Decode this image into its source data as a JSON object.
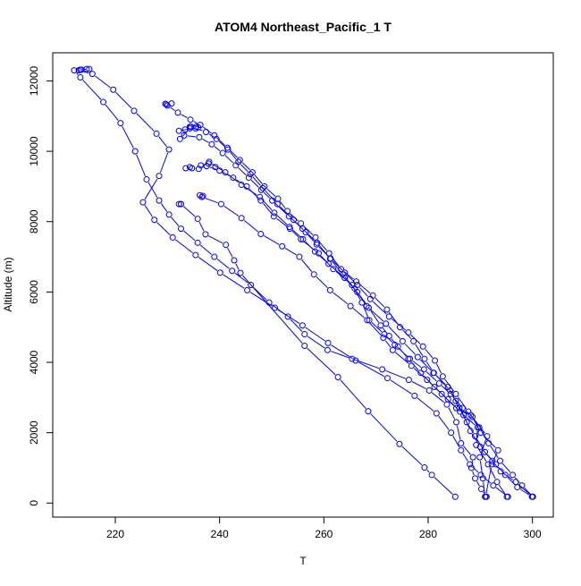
{
  "chart_data": {
    "type": "line",
    "title": "ATOM4 Northeast_Pacific_1 T",
    "xlabel": "T",
    "ylabel": "Altitude (m)",
    "xlim": [
      208,
      304
    ],
    "ylim": [
      -400,
      12800
    ],
    "x_ticks": [
      220,
      240,
      260,
      280,
      300
    ],
    "y_ticks": [
      0,
      2000,
      4000,
      6000,
      8000,
      10000,
      12000
    ],
    "grid": false,
    "legend": "none",
    "marker": "open-circle",
    "colors": {
      "series": "#0000ff",
      "frame": "#000000"
    },
    "series": [
      {
        "values": [
          [
            285.2,
            180
          ],
          [
            280.7,
            800
          ],
          [
            279.3,
            1010
          ],
          [
            274.5,
            1680
          ],
          [
            268.5,
            2610
          ],
          [
            262.7,
            3580
          ],
          [
            256.3,
            4470
          ],
          [
            244.0,
            6540
          ],
          [
            242.8,
            6900
          ],
          [
            241.2,
            7340
          ],
          [
            237.3,
            7640
          ],
          [
            235.8,
            8080
          ],
          [
            232.6,
            8500
          ],
          [
            232.2,
            8500
          ],
          [
            232.6,
            8500
          ]
        ]
      },
      {
        "values": [
          [
            290.9,
            180
          ],
          [
            290.5,
            700
          ],
          [
            289.9,
            1300
          ],
          [
            291.3,
            1900
          ],
          [
            288.2,
            2500
          ],
          [
            285.4,
            2700
          ],
          [
            282.6,
            3100
          ],
          [
            279.8,
            3500
          ],
          [
            276.8,
            3900
          ],
          [
            273.2,
            4350
          ],
          [
            271.4,
            4700
          ],
          [
            268.3,
            5200
          ],
          [
            265.1,
            5600
          ],
          [
            261.2,
            6050
          ],
          [
            258.1,
            6500
          ],
          [
            255.3,
            7000
          ],
          [
            252.0,
            7300
          ],
          [
            247.9,
            7650
          ],
          [
            244.2,
            8100
          ],
          [
            240.3,
            8500
          ],
          [
            236.6,
            8700
          ],
          [
            236.2,
            8750
          ],
          [
            236.8,
            8730
          ]
        ]
      },
      {
        "values": [
          [
            291.0,
            180
          ],
          [
            292.2,
            1100
          ],
          [
            293.4,
            1500
          ],
          [
            290.1,
            2000
          ],
          [
            288.5,
            2450
          ],
          [
            286.6,
            2700
          ],
          [
            284.3,
            3100
          ],
          [
            282.1,
            3400
          ],
          [
            279.2,
            3800
          ],
          [
            276.5,
            4100
          ],
          [
            273.6,
            4500
          ],
          [
            271.6,
            4800
          ],
          [
            268.7,
            5200
          ],
          [
            267.3,
            5700
          ],
          [
            265.4,
            6200
          ],
          [
            261.8,
            6650
          ],
          [
            259.0,
            7100
          ],
          [
            255.6,
            7500
          ],
          [
            253.5,
            7800
          ],
          [
            250.4,
            8150
          ],
          [
            247.9,
            8600
          ],
          [
            245.2,
            9000
          ],
          [
            242.6,
            9250
          ],
          [
            240.0,
            9450
          ],
          [
            237.5,
            9580
          ],
          [
            236.4,
            9600
          ],
          [
            237.9,
            9650
          ],
          [
            239.2,
            9550
          ]
        ]
      },
      {
        "values": [
          [
            295.1,
            180
          ],
          [
            293.2,
            600
          ],
          [
            291.5,
            1100
          ],
          [
            289.2,
            1650
          ],
          [
            289.5,
            2150
          ],
          [
            286.1,
            2600
          ],
          [
            283.8,
            2950
          ],
          [
            281.2,
            3300
          ],
          [
            278.6,
            3700
          ],
          [
            276.2,
            4100
          ],
          [
            274.2,
            4450
          ],
          [
            272.5,
            4750
          ],
          [
            270.9,
            5050
          ],
          [
            268.6,
            5550
          ],
          [
            266.4,
            6000
          ],
          [
            264.0,
            6400
          ],
          [
            260.9,
            6800
          ],
          [
            258.3,
            7150
          ],
          [
            256.0,
            7500
          ],
          [
            253.4,
            7850
          ],
          [
            250.5,
            8250
          ],
          [
            247.7,
            8700
          ],
          [
            244.2,
            9050
          ],
          [
            241.1,
            9400
          ],
          [
            238.0,
            9700
          ],
          [
            236.0,
            9500
          ],
          [
            234.7,
            9520
          ],
          [
            233.5,
            9520
          ],
          [
            234.3,
            9550
          ]
        ]
      },
      {
        "values": [
          [
            300.1,
            180
          ],
          [
            298.0,
            500
          ],
          [
            296.2,
            800
          ],
          [
            293.8,
            1200
          ],
          [
            291.6,
            1700
          ],
          [
            289.8,
            2150
          ],
          [
            287.7,
            2600
          ],
          [
            285.3,
            3100
          ],
          [
            282.8,
            3600
          ],
          [
            281.3,
            4050
          ],
          [
            279.0,
            4450
          ],
          [
            276.2,
            4850
          ],
          [
            272.5,
            5300
          ],
          [
            268.9,
            5800
          ],
          [
            266.4,
            6200
          ],
          [
            264.0,
            6550
          ],
          [
            261.3,
            6950
          ],
          [
            258.6,
            7350
          ],
          [
            256.5,
            7700
          ],
          [
            254.2,
            8050
          ],
          [
            251.1,
            8500
          ],
          [
            248.3,
            8950
          ],
          [
            245.9,
            9350
          ],
          [
            243.6,
            9700
          ],
          [
            241.6,
            10050
          ],
          [
            239.4,
            10350
          ],
          [
            237.4,
            10550
          ],
          [
            235.4,
            10650
          ],
          [
            233.4,
            10620
          ],
          [
            232.2,
            10580
          ],
          [
            235.9,
            10680
          ],
          [
            234.5,
            10700
          ]
        ]
      },
      {
        "values": [
          [
            299.9,
            180
          ],
          [
            297.1,
            450
          ],
          [
            294.8,
            800
          ],
          [
            293.0,
            1100
          ],
          [
            290.9,
            1450
          ],
          [
            289.0,
            1900
          ],
          [
            287.4,
            2300
          ],
          [
            286.0,
            2700
          ],
          [
            284.2,
            3200
          ],
          [
            281.1,
            3700
          ],
          [
            279.3,
            4100
          ],
          [
            277.2,
            4600
          ],
          [
            274.6,
            5000
          ],
          [
            272.1,
            5500
          ],
          [
            269.4,
            5900
          ],
          [
            266.2,
            6300
          ],
          [
            263.3,
            6650
          ],
          [
            261.0,
            7100
          ],
          [
            258.4,
            7550
          ],
          [
            255.6,
            7950
          ],
          [
            253.0,
            8300
          ],
          [
            251.2,
            8650
          ],
          [
            248.6,
            9000
          ],
          [
            246.3,
            9400
          ],
          [
            243.9,
            9750
          ],
          [
            241.5,
            10100
          ],
          [
            239.0,
            10450
          ],
          [
            236.3,
            10750
          ],
          [
            234.4,
            10900
          ],
          [
            232.0,
            11100
          ],
          [
            230.0,
            11300
          ],
          [
            229.6,
            11350
          ],
          [
            230.8,
            11360
          ],
          [
            229.8,
            11330
          ]
        ]
      },
      {
        "values": [
          [
            300.0,
            180
          ],
          [
            296.8,
            600
          ],
          [
            293.9,
            900
          ],
          [
            292.3,
            1200
          ],
          [
            290.0,
            1600
          ],
          [
            288.1,
            2050
          ],
          [
            286.8,
            2500
          ],
          [
            285.3,
            2900
          ],
          [
            283.8,
            3300
          ],
          [
            281.0,
            3700
          ],
          [
            278.0,
            4150
          ],
          [
            275.1,
            4600
          ],
          [
            271.9,
            5100
          ],
          [
            268.2,
            5600
          ],
          [
            265.9,
            6100
          ],
          [
            263.6,
            6500
          ],
          [
            261.2,
            6950
          ],
          [
            258.7,
            7400
          ],
          [
            255.9,
            7800
          ],
          [
            253.3,
            8150
          ],
          [
            250.1,
            8600
          ],
          [
            248.0,
            8900
          ],
          [
            245.6,
            9250
          ],
          [
            243.1,
            9600
          ],
          [
            240.6,
            9950
          ],
          [
            238.5,
            10200
          ],
          [
            236.1,
            10400
          ],
          [
            233.2,
            10450
          ],
          [
            232.4,
            10350
          ],
          [
            234.3,
            10650
          ],
          [
            235.5,
            10700
          ],
          [
            234.3,
            10700
          ]
        ]
      },
      {
        "values": [
          [
            291.2,
            180
          ],
          [
            290.2,
            400
          ],
          [
            289.0,
            700
          ],
          [
            288.3,
            1000
          ],
          [
            288.6,
            1300
          ],
          [
            286.3,
            1700
          ],
          [
            285.4,
            2300
          ],
          [
            283.6,
            2800
          ],
          [
            280.2,
            3200
          ],
          [
            276.3,
            3500
          ],
          [
            271.2,
            3800
          ],
          [
            265.4,
            4100
          ],
          [
            260.7,
            4350
          ],
          [
            256.3,
            4800
          ],
          [
            253.1,
            5300
          ],
          [
            249.5,
            5700
          ],
          [
            246.0,
            6200
          ],
          [
            242.4,
            6600
          ],
          [
            239.0,
            7000
          ],
          [
            235.8,
            7400
          ],
          [
            232.6,
            7800
          ],
          [
            230.3,
            8200
          ],
          [
            228.4,
            8600
          ],
          [
            226.0,
            9200
          ],
          [
            223.8,
            10000
          ],
          [
            221.0,
            10800
          ],
          [
            217.7,
            11400
          ],
          [
            213.3,
            12100
          ],
          [
            212.1,
            12300
          ],
          [
            213.5,
            12320
          ],
          [
            215.0,
            12340
          ],
          [
            213.3,
            12320
          ]
        ]
      },
      {
        "values": [
          [
            295.3,
            180
          ],
          [
            292.5,
            500
          ],
          [
            290.1,
            800
          ],
          [
            288.0,
            1100
          ],
          [
            286.3,
            1500
          ],
          [
            284.4,
            2000
          ],
          [
            281.6,
            2550
          ],
          [
            277.4,
            3050
          ],
          [
            272.2,
            3550
          ],
          [
            266.1,
            4050
          ],
          [
            260.8,
            4550
          ],
          [
            255.9,
            5050
          ],
          [
            250.6,
            5550
          ],
          [
            245.3,
            6050
          ],
          [
            240.1,
            6550
          ],
          [
            235.4,
            7050
          ],
          [
            231.0,
            7550
          ],
          [
            227.5,
            8050
          ],
          [
            225.3,
            8550
          ],
          [
            228.4,
            9300
          ],
          [
            230.3,
            10050
          ],
          [
            227.9,
            10500
          ],
          [
            223.6,
            11150
          ],
          [
            219.6,
            11750
          ],
          [
            215.6,
            12200
          ],
          [
            213.0,
            12300
          ],
          [
            214.5,
            12340
          ]
        ]
      }
    ]
  }
}
